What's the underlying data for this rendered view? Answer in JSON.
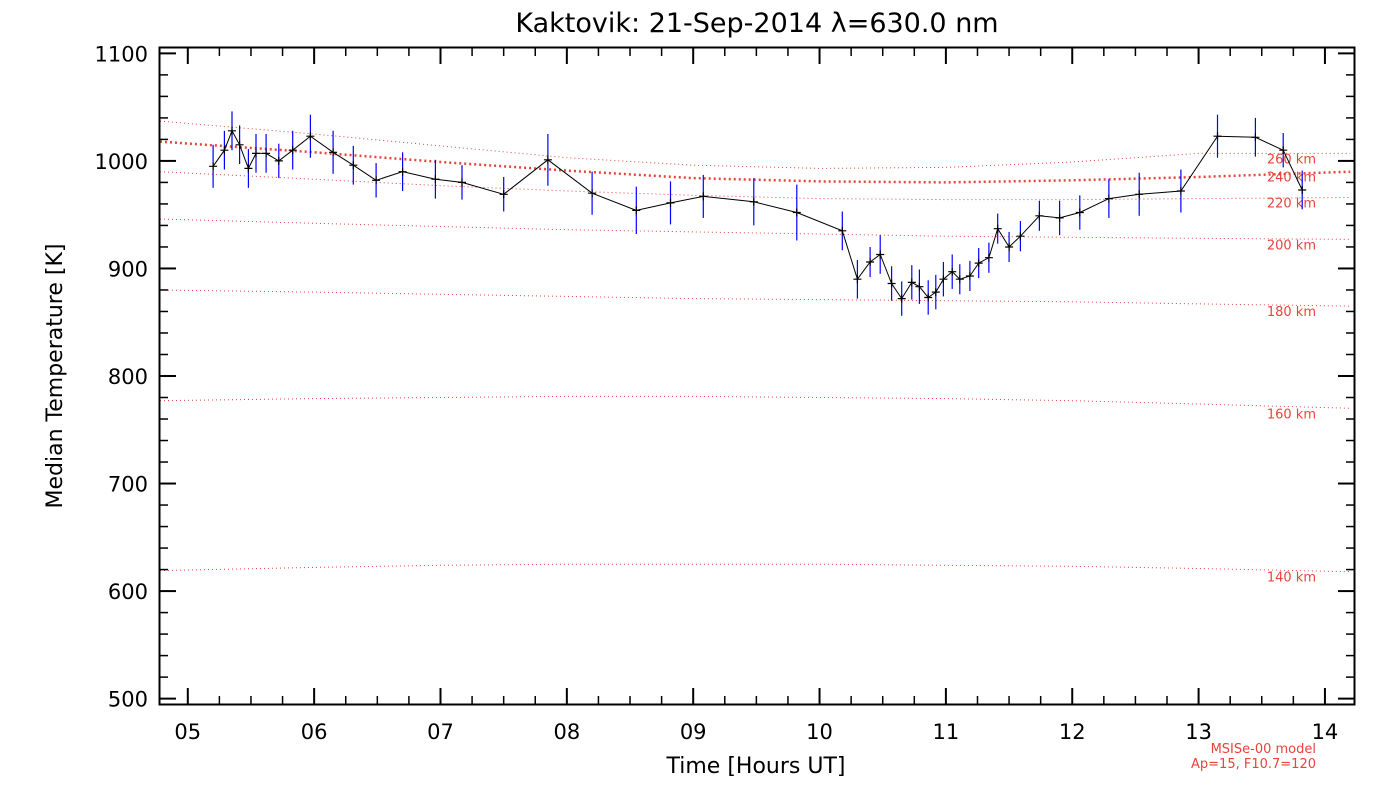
{
  "chart_data": {
    "type": "line",
    "title": "Kaktovik: 21-Sep-2014 λ=630.0 nm",
    "xlabel": "Time [Hours UT]",
    "ylabel": "Median Temperature [K]",
    "xlim": [
      4.78,
      14.23
    ],
    "ylim": [
      495,
      1105
    ],
    "xticks": [
      5,
      6,
      7,
      8,
      9,
      10,
      11,
      12,
      13,
      14
    ],
    "xtick_labels": [
      "05",
      "06",
      "07",
      "08",
      "09",
      "10",
      "11",
      "12",
      "13",
      "14"
    ],
    "yticks": [
      500,
      600,
      700,
      800,
      900,
      1000,
      1100
    ],
    "ytick_labels": [
      "500",
      "600",
      "700",
      "800",
      "900",
      "1000",
      "1100"
    ],
    "grid": false,
    "colors": {
      "data_line": "#000000",
      "error_bar": "#0000ff",
      "model": "#e8443a"
    },
    "series": [
      {
        "x": [
          5.2,
          5.29,
          5.35,
          5.41,
          5.48,
          5.54,
          5.62,
          5.72,
          5.83,
          5.97,
          6.15,
          6.31,
          6.49,
          6.7,
          6.96,
          7.17,
          7.5,
          7.85,
          8.2,
          8.55,
          8.82,
          9.08,
          9.48,
          9.82,
          10.18,
          10.3,
          10.4,
          10.48,
          10.57,
          10.65,
          10.73,
          10.79,
          10.86,
          10.92,
          10.98,
          11.05,
          11.11,
          11.19,
          11.26,
          11.34,
          11.41,
          11.5,
          11.59,
          11.74,
          11.9,
          12.06,
          12.29,
          12.53,
          12.86,
          13.15,
          13.45,
          13.67,
          13.82
        ],
        "values": [
          995,
          1010,
          1028,
          1015,
          993,
          1007,
          1007,
          1000,
          1010,
          1023,
          1008,
          996,
          982,
          990,
          983,
          980,
          969,
          1001,
          970,
          954,
          961,
          967,
          962,
          952,
          935,
          890,
          906,
          913,
          886,
          872,
          887,
          883,
          873,
          878,
          890,
          897,
          890,
          893,
          905,
          910,
          937,
          920,
          930,
          949,
          947,
          952,
          965,
          969,
          972,
          1023,
          1022,
          1010,
          973
        ],
        "errors": [
          20,
          18,
          18,
          18,
          18,
          18,
          18,
          16,
          18,
          20,
          20,
          18,
          16,
          18,
          18,
          16,
          16,
          24,
          20,
          22,
          20,
          20,
          22,
          26,
          18,
          18,
          14,
          18,
          16,
          16,
          16,
          16,
          16,
          16,
          16,
          16,
          14,
          14,
          14,
          14,
          14,
          14,
          14,
          14,
          16,
          16,
          18,
          20,
          20,
          20,
          18,
          16,
          18
        ]
      }
    ],
    "model_curves": [
      {
        "label": "260 km",
        "x": [
          4.78,
          6.0,
          7.0,
          8.0,
          9.0,
          10.0,
          11.0,
          12.0,
          13.0,
          14.2
        ],
        "values": [
          1037,
          1025,
          1014,
          1003,
          996,
          993,
          994,
          999,
          1007,
          1007
        ]
      },
      {
        "label": "240 km",
        "x": [
          4.78,
          6.0,
          7.0,
          8.0,
          9.0,
          10.0,
          11.0,
          12.0,
          13.0,
          14.2
        ],
        "values": [
          1018,
          1008,
          999,
          991,
          984,
          981,
          980,
          982,
          985,
          990
        ]
      },
      {
        "label": "220 km",
        "x": [
          4.78,
          6.0,
          7.0,
          8.0,
          9.0,
          10.0,
          11.0,
          12.0,
          13.0,
          14.2
        ],
        "values": [
          990,
          983,
          977,
          972,
          968,
          965,
          964,
          964,
          965,
          966
        ]
      },
      {
        "label": "200 km",
        "x": [
          4.78,
          6.0,
          7.0,
          8.0,
          9.0,
          10.0,
          11.0,
          12.0,
          13.0,
          14.2
        ],
        "values": [
          946,
          942,
          939,
          936,
          934,
          932,
          930,
          929,
          928,
          927
        ]
      },
      {
        "label": "180 km",
        "x": [
          4.78,
          6.0,
          7.0,
          8.0,
          9.0,
          10.0,
          11.0,
          12.0,
          13.0,
          14.2
        ],
        "values": [
          880,
          878,
          876,
          874,
          872,
          871,
          870,
          869,
          867,
          865
        ]
      },
      {
        "label": "160 km",
        "x": [
          4.78,
          6.0,
          7.0,
          8.0,
          9.0,
          10.0,
          11.0,
          12.0,
          13.0,
          14.2
        ],
        "values": [
          777,
          779,
          780,
          781,
          781,
          780,
          779,
          777,
          774,
          770
        ]
      },
      {
        "label": "140 km",
        "x": [
          4.78,
          6.0,
          7.0,
          8.0,
          9.0,
          10.0,
          11.0,
          12.0,
          13.0,
          14.2
        ],
        "values": [
          619,
          622,
          624,
          625,
          625,
          625,
          624,
          623,
          621,
          618
        ]
      }
    ],
    "model_highlight": "240 km",
    "annotations": [
      "MSISe-00 model",
      "Ap=15, F10.7=120"
    ]
  }
}
